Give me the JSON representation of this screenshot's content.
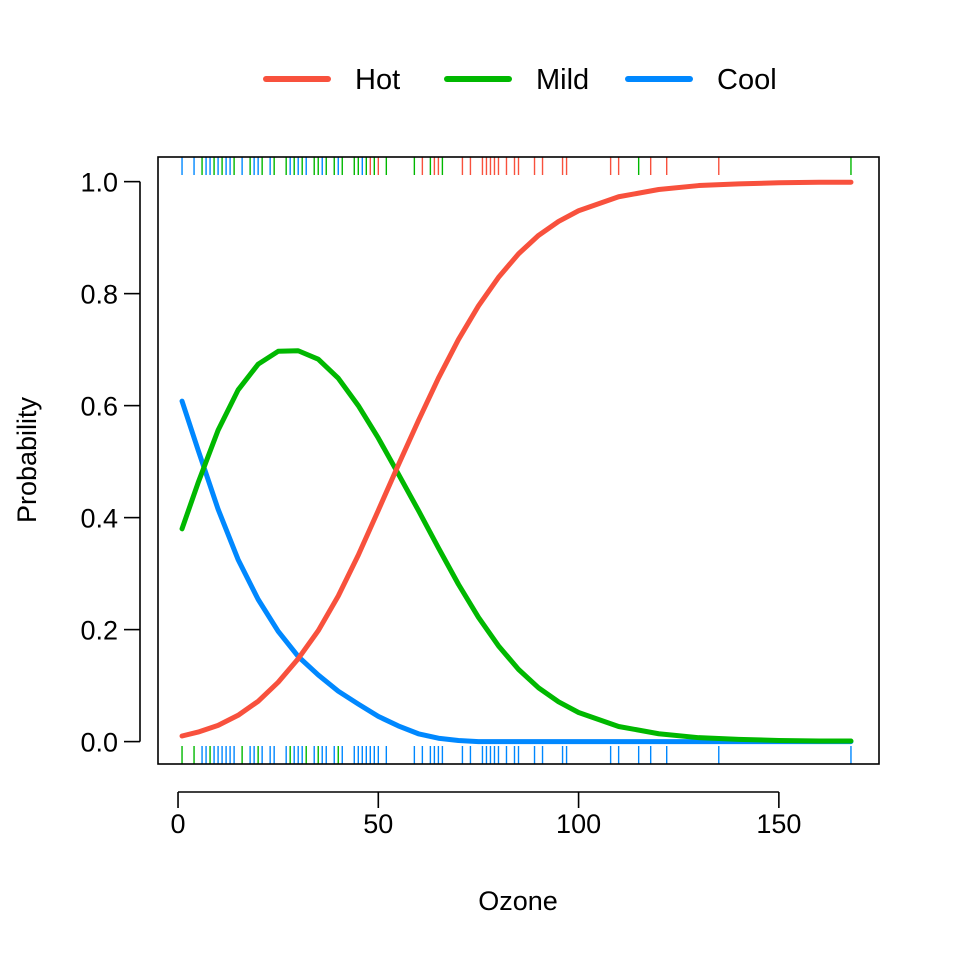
{
  "chart_data": {
    "type": "line",
    "xlabel": "Ozone",
    "ylabel": "Probability",
    "xlim": [
      -5,
      175
    ],
    "ylim": [
      -0.04,
      1.044
    ],
    "x_ticks": [
      0,
      50,
      100,
      150
    ],
    "y_ticks": [
      0.0,
      0.2,
      0.4,
      0.6,
      0.8,
      1.0
    ],
    "x_tick_labels": [
      "0",
      "50",
      "100",
      "150"
    ],
    "y_tick_labels": [
      "0.0",
      "0.2",
      "0.4",
      "0.6",
      "0.8",
      "1.0"
    ],
    "grid": false,
    "legend_position": "top",
    "x": [
      1,
      5,
      10,
      15,
      20,
      25,
      30,
      35,
      40,
      45,
      50,
      55,
      60,
      65,
      70,
      75,
      80,
      85,
      90,
      95,
      100,
      110,
      120,
      130,
      140,
      150,
      160,
      168
    ],
    "series": [
      {
        "name": "Hot",
        "color": "#F8513D",
        "values": [
          0.01,
          0.017,
          0.029,
          0.047,
          0.072,
          0.106,
          0.148,
          0.198,
          0.26,
          0.333,
          0.413,
          0.494,
          0.573,
          0.649,
          0.718,
          0.778,
          0.829,
          0.871,
          0.904,
          0.929,
          0.948,
          0.973,
          0.986,
          0.993,
          0.996,
          0.998,
          0.999,
          0.999
        ]
      },
      {
        "name": "Mild",
        "color": "#00B800",
        "values": [
          0.38,
          0.462,
          0.556,
          0.628,
          0.674,
          0.697,
          0.698,
          0.683,
          0.649,
          0.6,
          0.542,
          0.478,
          0.413,
          0.346,
          0.281,
          0.222,
          0.171,
          0.129,
          0.096,
          0.071,
          0.052,
          0.027,
          0.014,
          0.007,
          0.004,
          0.002,
          0.001,
          0.001
        ]
      },
      {
        "name": "Cool",
        "color": "#0088FF",
        "values": [
          0.608,
          0.521,
          0.415,
          0.325,
          0.254,
          0.197,
          0.152,
          0.119,
          0.09,
          0.067,
          0.045,
          0.028,
          0.014,
          0.006,
          0.002,
          0.0,
          0.0,
          0.0,
          0.0,
          0.0,
          0.0,
          0.0,
          0.0,
          0.0,
          0.0,
          0.0,
          0.0,
          0.0
        ]
      }
    ],
    "rug_top": [
      {
        "x": 1,
        "series": "Cool"
      },
      {
        "x": 4,
        "series": "Cool"
      },
      {
        "x": 6,
        "series": "Mild"
      },
      {
        "x": 7,
        "series": "Cool"
      },
      {
        "x": 8,
        "series": "Cool"
      },
      {
        "x": 9,
        "series": "Mild"
      },
      {
        "x": 10,
        "series": "Cool"
      },
      {
        "x": 11,
        "series": "Mild"
      },
      {
        "x": 12,
        "series": "Cool"
      },
      {
        "x": 13,
        "series": "Cool"
      },
      {
        "x": 14,
        "series": "Mild"
      },
      {
        "x": 16,
        "series": "Cool"
      },
      {
        "x": 18,
        "series": "Mild"
      },
      {
        "x": 19,
        "series": "Cool"
      },
      {
        "x": 20,
        "series": "Cool"
      },
      {
        "x": 21,
        "series": "Mild"
      },
      {
        "x": 23,
        "series": "Cool"
      },
      {
        "x": 24,
        "series": "Mild"
      },
      {
        "x": 27,
        "series": "Mild"
      },
      {
        "x": 28,
        "series": "Cool"
      },
      {
        "x": 29,
        "series": "Mild"
      },
      {
        "x": 30,
        "series": "Cool"
      },
      {
        "x": 31,
        "series": "Mild"
      },
      {
        "x": 32,
        "series": "Cool"
      },
      {
        "x": 34,
        "series": "Mild"
      },
      {
        "x": 35,
        "series": "Mild"
      },
      {
        "x": 36,
        "series": "Cool"
      },
      {
        "x": 37,
        "series": "Mild"
      },
      {
        "x": 39,
        "series": "Mild"
      },
      {
        "x": 40,
        "series": "Cool"
      },
      {
        "x": 41,
        "series": "Mild"
      },
      {
        "x": 44,
        "series": "Mild"
      },
      {
        "x": 45,
        "series": "Mild"
      },
      {
        "x": 46,
        "series": "Cool"
      },
      {
        "x": 47,
        "series": "Mild"
      },
      {
        "x": 48,
        "series": "Hot"
      },
      {
        "x": 49,
        "series": "Mild"
      },
      {
        "x": 50,
        "series": "Hot"
      },
      {
        "x": 52,
        "series": "Mild"
      },
      {
        "x": 59,
        "series": "Mild"
      },
      {
        "x": 61,
        "series": "Hot"
      },
      {
        "x": 63,
        "series": "Mild"
      },
      {
        "x": 64,
        "series": "Hot"
      },
      {
        "x": 65,
        "series": "Hot"
      },
      {
        "x": 66,
        "series": "Mild"
      },
      {
        "x": 71,
        "series": "Hot"
      },
      {
        "x": 73,
        "series": "Hot"
      },
      {
        "x": 76,
        "series": "Hot"
      },
      {
        "x": 77,
        "series": "Hot"
      },
      {
        "x": 78,
        "series": "Hot"
      },
      {
        "x": 79,
        "series": "Hot"
      },
      {
        "x": 80,
        "series": "Hot"
      },
      {
        "x": 82,
        "series": "Hot"
      },
      {
        "x": 84,
        "series": "Hot"
      },
      {
        "x": 85,
        "series": "Hot"
      },
      {
        "x": 89,
        "series": "Hot"
      },
      {
        "x": 91,
        "series": "Hot"
      },
      {
        "x": 96,
        "series": "Hot"
      },
      {
        "x": 97,
        "series": "Hot"
      },
      {
        "x": 108,
        "series": "Hot"
      },
      {
        "x": 110,
        "series": "Hot"
      },
      {
        "x": 115,
        "series": "Mild"
      },
      {
        "x": 118,
        "series": "Hot"
      },
      {
        "x": 122,
        "series": "Hot"
      },
      {
        "x": 135,
        "series": "Hot"
      },
      {
        "x": 168,
        "series": "Mild"
      }
    ],
    "rug_bottom": [
      {
        "x": 1,
        "series": "Mild"
      },
      {
        "x": 4,
        "series": "Mild"
      },
      {
        "x": 6,
        "series": "Cool"
      },
      {
        "x": 7,
        "series": "Cool"
      },
      {
        "x": 8,
        "series": "Mild"
      },
      {
        "x": 9,
        "series": "Cool"
      },
      {
        "x": 10,
        "series": "Cool"
      },
      {
        "x": 11,
        "series": "Cool"
      },
      {
        "x": 12,
        "series": "Cool"
      },
      {
        "x": 13,
        "series": "Cool"
      },
      {
        "x": 14,
        "series": "Cool"
      },
      {
        "x": 16,
        "series": "Mild"
      },
      {
        "x": 18,
        "series": "Cool"
      },
      {
        "x": 19,
        "series": "Cool"
      },
      {
        "x": 20,
        "series": "Mild"
      },
      {
        "x": 21,
        "series": "Cool"
      },
      {
        "x": 23,
        "series": "Cool"
      },
      {
        "x": 24,
        "series": "Cool"
      },
      {
        "x": 27,
        "series": "Cool"
      },
      {
        "x": 28,
        "series": "Mild"
      },
      {
        "x": 29,
        "series": "Cool"
      },
      {
        "x": 30,
        "series": "Cool"
      },
      {
        "x": 31,
        "series": "Cool"
      },
      {
        "x": 32,
        "series": "Mild"
      },
      {
        "x": 34,
        "series": "Cool"
      },
      {
        "x": 35,
        "series": "Mild"
      },
      {
        "x": 36,
        "series": "Cool"
      },
      {
        "x": 37,
        "series": "Cool"
      },
      {
        "x": 39,
        "series": "Cool"
      },
      {
        "x": 40,
        "series": "Mild"
      },
      {
        "x": 41,
        "series": "Cool"
      },
      {
        "x": 44,
        "series": "Cool"
      },
      {
        "x": 45,
        "series": "Cool"
      },
      {
        "x": 46,
        "series": "Cool"
      },
      {
        "x": 47,
        "series": "Cool"
      },
      {
        "x": 48,
        "series": "Cool"
      },
      {
        "x": 49,
        "series": "Cool"
      },
      {
        "x": 50,
        "series": "Cool"
      },
      {
        "x": 52,
        "series": "Cool"
      },
      {
        "x": 59,
        "series": "Cool"
      },
      {
        "x": 61,
        "series": "Cool"
      },
      {
        "x": 63,
        "series": "Cool"
      },
      {
        "x": 64,
        "series": "Cool"
      },
      {
        "x": 65,
        "series": "Cool"
      },
      {
        "x": 66,
        "series": "Cool"
      },
      {
        "x": 71,
        "series": "Cool"
      },
      {
        "x": 73,
        "series": "Cool"
      },
      {
        "x": 76,
        "series": "Cool"
      },
      {
        "x": 77,
        "series": "Cool"
      },
      {
        "x": 78,
        "series": "Cool"
      },
      {
        "x": 79,
        "series": "Cool"
      },
      {
        "x": 80,
        "series": "Cool"
      },
      {
        "x": 82,
        "series": "Cool"
      },
      {
        "x": 84,
        "series": "Cool"
      },
      {
        "x": 85,
        "series": "Cool"
      },
      {
        "x": 89,
        "series": "Cool"
      },
      {
        "x": 91,
        "series": "Cool"
      },
      {
        "x": 96,
        "series": "Cool"
      },
      {
        "x": 97,
        "series": "Cool"
      },
      {
        "x": 108,
        "series": "Cool"
      },
      {
        "x": 110,
        "series": "Cool"
      },
      {
        "x": 115,
        "series": "Cool"
      },
      {
        "x": 118,
        "series": "Cool"
      },
      {
        "x": 122,
        "series": "Cool"
      },
      {
        "x": 135,
        "series": "Cool"
      },
      {
        "x": 168,
        "series": "Cool"
      }
    ]
  }
}
